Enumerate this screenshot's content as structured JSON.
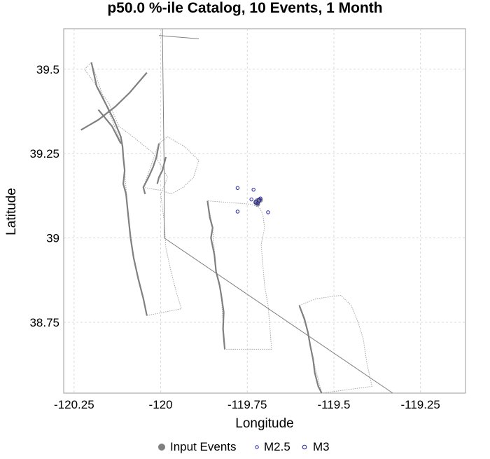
{
  "chart_data": {
    "type": "scatter",
    "title": "p50.0 %-ile Catalog, 10 Events, 1 Month",
    "xlabel": "Longitude",
    "ylabel": "Latitude",
    "xlim": [
      -120.28,
      -119.12
    ],
    "ylim": [
      38.54,
      39.62
    ],
    "xticks": [
      -120.25,
      -120,
      -119.75,
      -119.5,
      -119.25
    ],
    "xtick_labels": [
      "-120.25",
      "-120",
      "-119.75",
      "-119.5",
      "-119.25"
    ],
    "yticks": [
      38.75,
      39,
      39.25,
      39.5
    ],
    "ytick_labels": [
      "38.75",
      "39",
      "39.25",
      "39.5"
    ],
    "grid": true,
    "legend_position": "bottom",
    "legend": [
      "Input Events",
      "M2.5",
      "M3"
    ],
    "colors": {
      "input_events": "#808080",
      "m25": "#1f1fa0",
      "m3": "#1f1fa0",
      "fault_trace": "#808080",
      "grid": "#d9d9d9"
    },
    "series": [
      {
        "name": "Input Events",
        "marker": "filled-circle",
        "points": [
          [
            -119.725,
            39.105
          ],
          [
            -119.718,
            39.108
          ],
          [
            -119.722,
            39.11
          ],
          [
            -119.716,
            39.112
          ],
          [
            -119.72,
            39.1
          ],
          [
            -119.712,
            39.112
          ]
        ]
      },
      {
        "name": "M2.5",
        "marker": "open-circle-small",
        "points": [
          [
            -119.778,
            39.148
          ],
          [
            -119.732,
            39.143
          ],
          [
            -119.738,
            39.114
          ],
          [
            -119.72,
            39.103
          ],
          [
            -119.712,
            39.117
          ],
          [
            -119.778,
            39.078
          ],
          [
            -119.69,
            39.076
          ]
        ]
      },
      {
        "name": "M3",
        "marker": "open-circle",
        "points": [
          [
            -119.725,
            39.106
          ],
          [
            -119.716,
            39.112
          ]
        ]
      }
    ],
    "fault_traces": [
      [
        [
          -120.2,
          39.52
        ],
        [
          -120.185,
          39.45
        ],
        [
          -120.16,
          39.4
        ],
        [
          -120.135,
          39.35
        ],
        [
          -120.115,
          39.3
        ],
        [
          -120.11,
          39.27
        ],
        [
          -120.108,
          39.24
        ],
        [
          -120.104,
          39.2
        ],
        [
          -120.108,
          39.16
        ],
        [
          -120.1,
          39.13
        ],
        [
          -120.095,
          39.08
        ],
        [
          -120.087,
          39.0
        ],
        [
          -120.078,
          38.94
        ],
        [
          -120.065,
          38.88
        ],
        [
          -120.05,
          38.82
        ],
        [
          -120.04,
          38.77
        ]
      ],
      [
        [
          -120.04,
          39.49
        ],
        [
          -120.09,
          39.43
        ],
        [
          -120.13,
          39.39
        ],
        [
          -120.18,
          39.35
        ],
        [
          -120.23,
          39.32
        ]
      ],
      [
        [
          -120.18,
          39.38
        ],
        [
          -120.14,
          39.33
        ],
        [
          -120.115,
          39.28
        ]
      ],
      [
        [
          -120.005,
          39.28
        ],
        [
          -120.012,
          39.24
        ],
        [
          -120.022,
          39.21
        ],
        [
          -120.035,
          39.18
        ],
        [
          -120.05,
          39.15
        ],
        [
          -120.045,
          39.13
        ]
      ],
      [
        [
          -119.985,
          39.24
        ],
        [
          -119.995,
          39.2
        ],
        [
          -120.005,
          39.18
        ],
        [
          -120.01,
          39.16
        ]
      ],
      [
        [
          -119.865,
          39.11
        ],
        [
          -119.858,
          39.06
        ],
        [
          -119.85,
          39.03
        ],
        [
          -119.855,
          39.0
        ],
        [
          -119.845,
          38.95
        ],
        [
          -119.84,
          38.9
        ],
        [
          -119.83,
          38.86
        ],
        [
          -119.825,
          38.83
        ],
        [
          -119.818,
          38.78
        ],
        [
          -119.82,
          38.73
        ],
        [
          -119.815,
          38.67
        ]
      ],
      [
        [
          -119.6,
          38.8
        ],
        [
          -119.585,
          38.76
        ],
        [
          -119.575,
          38.72
        ],
        [
          -119.568,
          38.68
        ],
        [
          -119.56,
          38.64
        ],
        [
          -119.555,
          38.6
        ],
        [
          -119.545,
          38.56
        ],
        [
          -119.535,
          38.54
        ]
      ]
    ],
    "fault_polygons": [
      [
        [
          -120.2,
          39.52
        ],
        [
          -120.16,
          39.4
        ],
        [
          -120.11,
          39.27
        ],
        [
          -120.104,
          39.2
        ],
        [
          -120.095,
          39.08
        ],
        [
          -120.078,
          38.94
        ],
        [
          -120.05,
          38.82
        ],
        [
          -120.04,
          38.77
        ],
        [
          -119.94,
          38.79
        ],
        [
          -119.955,
          38.84
        ],
        [
          -119.97,
          38.9
        ],
        [
          -119.985,
          38.97
        ],
        [
          -119.99,
          39.05
        ],
        [
          -120.0,
          39.13
        ],
        [
          -119.98,
          39.18
        ],
        [
          -120.02,
          39.25
        ],
        [
          -120.08,
          39.3
        ],
        [
          -120.12,
          39.33
        ],
        [
          -120.15,
          39.4
        ],
        [
          -120.22,
          39.5
        ]
      ],
      [
        [
          -120.005,
          39.28
        ],
        [
          -120.05,
          39.15
        ],
        [
          -119.995,
          39.14
        ],
        [
          -119.97,
          39.13
        ],
        [
          -119.935,
          39.15
        ],
        [
          -119.905,
          39.18
        ],
        [
          -119.89,
          39.23
        ],
        [
          -119.93,
          39.27
        ],
        [
          -119.98,
          39.3
        ]
      ],
      [
        [
          -119.865,
          39.11
        ],
        [
          -119.85,
          39.03
        ],
        [
          -119.84,
          38.9
        ],
        [
          -119.825,
          38.83
        ],
        [
          -119.815,
          38.67
        ],
        [
          -119.68,
          38.67
        ],
        [
          -119.685,
          38.74
        ],
        [
          -119.69,
          38.8
        ],
        [
          -119.7,
          38.86
        ],
        [
          -119.705,
          38.92
        ],
        [
          -119.71,
          38.98
        ],
        [
          -119.7,
          39.03
        ],
        [
          -119.705,
          39.07
        ],
        [
          -119.715,
          39.09
        ],
        [
          -119.74,
          39.1
        ]
      ],
      [
        [
          -119.6,
          38.8
        ],
        [
          -119.575,
          38.72
        ],
        [
          -119.56,
          38.64
        ],
        [
          -119.535,
          38.54
        ],
        [
          -119.39,
          38.56
        ],
        [
          -119.405,
          38.63
        ],
        [
          -119.415,
          38.7
        ],
        [
          -119.43,
          38.75
        ],
        [
          -119.45,
          38.8
        ],
        [
          -119.48,
          38.83
        ],
        [
          -119.55,
          38.82
        ]
      ]
    ],
    "fault_lines": [
      [
        [
          -119.995,
          39.62
        ],
        [
          -119.99,
          39.2
        ],
        [
          -119.99,
          39.0
        ],
        [
          -119.33,
          38.54
        ]
      ],
      [
        [
          -120.005,
          39.6
        ],
        [
          -119.89,
          39.59
        ]
      ]
    ]
  }
}
